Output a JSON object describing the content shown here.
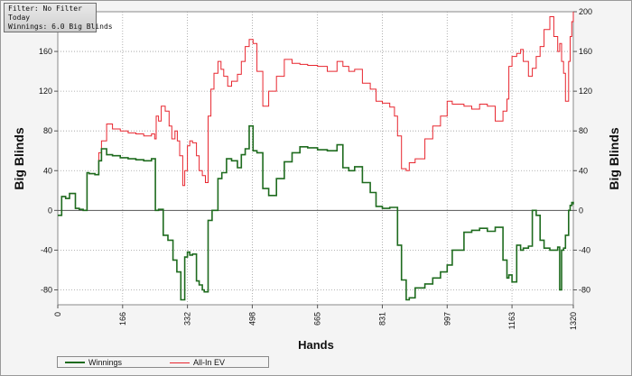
{
  "info_box": {
    "filter": "Filter: No Filter",
    "period": "Today",
    "winnings": "Winnings: 6.0 Big Blinds"
  },
  "colors": {
    "winnings": "#1e6b1e",
    "all_in_ev": "#e8262f",
    "zero_line": "#555555",
    "grid": "#9e9e9e"
  },
  "chart_data": {
    "type": "line",
    "xlabel": "Hands",
    "ylabel": "Big Blinds",
    "y2label": "Big Blinds",
    "xlim": [
      0,
      1320
    ],
    "ylim": [
      -95,
      200
    ],
    "x_ticks": [
      "0",
      "166",
      "332",
      "498",
      "665",
      "831",
      "997",
      "1163",
      "1320"
    ],
    "x_tick_values": [
      0,
      166,
      332,
      498,
      665,
      831,
      997,
      1163,
      1320
    ],
    "y_ticks": [
      -80,
      -40,
      0,
      40,
      80,
      120,
      160
    ],
    "y2_ticks": [
      -80,
      -40,
      0,
      40,
      80,
      120,
      160,
      200
    ],
    "grid": true,
    "legend_position": "bottom-left",
    "series": [
      {
        "name": "Winnings",
        "x": [
          0,
          10,
          20,
          30,
          45,
          55,
          65,
          75,
          80,
          95,
          105,
          112,
          125,
          140,
          160,
          180,
          200,
          220,
          240,
          250,
          258,
          270,
          282,
          295,
          305,
          315,
          325,
          332,
          338,
          345,
          355,
          362,
          370,
          375,
          385,
          395,
          410,
          420,
          432,
          445,
          460,
          470,
          480,
          490,
          500,
          510,
          525,
          540,
          560,
          580,
          600,
          620,
          640,
          665,
          690,
          715,
          730,
          745,
          760,
          780,
          800,
          815,
          831,
          850,
          870,
          880,
          892,
          900,
          915,
          940,
          960,
          980,
          997,
          1010,
          1040,
          1060,
          1080,
          1100,
          1120,
          1140,
          1150,
          1155,
          1163,
          1175,
          1185,
          1192,
          1205,
          1215,
          1225,
          1235,
          1245,
          1260,
          1270,
          1280,
          1285,
          1290,
          1295,
          1300,
          1308,
          1312,
          1316,
          1320
        ],
        "y": [
          -5,
          14,
          12,
          17,
          2,
          1,
          0,
          38,
          37,
          36,
          50,
          62,
          56,
          55,
          53,
          52,
          51,
          50,
          52,
          0,
          1,
          -25,
          -30,
          -50,
          -62,
          -90,
          -47,
          -42,
          -45,
          -44,
          -71,
          -75,
          -80,
          -82,
          -10,
          0,
          32,
          38,
          52,
          50,
          43,
          56,
          62,
          85,
          60,
          58,
          22,
          15,
          32,
          49,
          58,
          64,
          63,
          61,
          60,
          66,
          43,
          40,
          44,
          28,
          18,
          4,
          2,
          3,
          -35,
          -70,
          -90,
          -88,
          -78,
          -74,
          -68,
          -62,
          -55,
          -40,
          -22,
          -20,
          -18,
          -21,
          -17,
          -50,
          -68,
          -65,
          -72,
          -35,
          -40,
          -38,
          -36,
          0,
          -5,
          -30,
          -38,
          -40,
          -40,
          -37,
          -80,
          -40,
          -38,
          -25,
          0,
          5,
          8,
          6
        ]
      },
      {
        "name": "All-In EV",
        "x": [
          0,
          10,
          20,
          30,
          45,
          55,
          65,
          75,
          80,
          95,
          105,
          112,
          125,
          140,
          160,
          180,
          200,
          220,
          240,
          248,
          252,
          258,
          265,
          275,
          285,
          292,
          300,
          306,
          312,
          320,
          325,
          332,
          338,
          345,
          355,
          362,
          370,
          378,
          385,
          392,
          400,
          410,
          418,
          425,
          435,
          445,
          460,
          470,
          480,
          490,
          500,
          510,
          525,
          540,
          560,
          580,
          600,
          620,
          640,
          665,
          690,
          715,
          730,
          745,
          760,
          780,
          800,
          815,
          831,
          850,
          862,
          870,
          880,
          892,
          900,
          915,
          940,
          960,
          980,
          997,
          1010,
          1040,
          1060,
          1080,
          1100,
          1120,
          1140,
          1150,
          1155,
          1163,
          1175,
          1185,
          1192,
          1205,
          1215,
          1225,
          1235,
          1245,
          1260,
          1270,
          1280,
          1285,
          1290,
          1295,
          1300,
          1308,
          1312,
          1316,
          1320
        ],
        "y": [
          -5,
          14,
          12,
          17,
          2,
          1,
          0,
          38,
          37,
          36,
          58,
          70,
          87,
          82,
          80,
          78,
          77,
          75,
          77,
          72,
          95,
          90,
          105,
          100,
          85,
          72,
          80,
          70,
          55,
          25,
          40,
          65,
          70,
          68,
          55,
          40,
          35,
          28,
          95,
          122,
          138,
          150,
          142,
          135,
          125,
          130,
          137,
          150,
          165,
          172,
          168,
          140,
          105,
          120,
          135,
          152,
          148,
          147,
          146,
          145,
          140,
          150,
          145,
          140,
          142,
          128,
          122,
          110,
          108,
          104,
          95,
          75,
          42,
          40,
          48,
          52,
          72,
          85,
          95,
          110,
          107,
          105,
          102,
          107,
          105,
          90,
          100,
          112,
          145,
          155,
          158,
          162,
          150,
          135,
          143,
          155,
          165,
          182,
          195,
          175,
          160,
          168,
          150,
          138,
          110,
          150,
          175,
          190,
          200
        ]
      }
    ]
  },
  "legend": {
    "winnings_label": "Winnings",
    "ev_label": "All-In EV"
  }
}
